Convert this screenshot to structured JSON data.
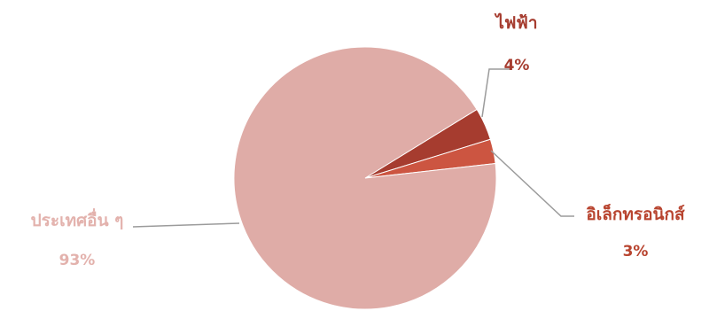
{
  "chart_data": {
    "type": "pie",
    "title": "",
    "legend": "none",
    "slices": [
      {
        "label": "ไฟฟ้า",
        "value": 4,
        "value_label": "4%",
        "color": "#a63c2f",
        "text_color": "#a63c2f"
      },
      {
        "label": "อิเล็กทรอนิกส์",
        "value": 3,
        "value_label": "3%",
        "color": "#cc5541",
        "text_color": "#b8442f"
      },
      {
        "label": "ประเทศอื่น ๆ",
        "value": 93,
        "value_label": "93%",
        "color": "#dfaca7",
        "text_color": "#e3b2ad"
      }
    ]
  }
}
